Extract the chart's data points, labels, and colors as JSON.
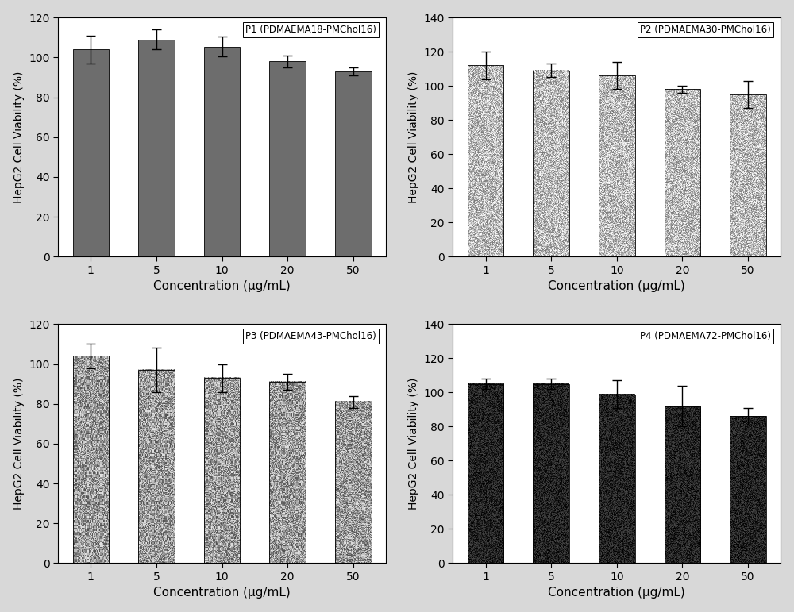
{
  "panels": [
    {
      "title": "P1 (PDMAEMA18-PMChol16)",
      "values": [
        104,
        109,
        105.5,
        98,
        93
      ],
      "errors": [
        7,
        5,
        5,
        3,
        2
      ],
      "ylim": [
        0,
        120
      ],
      "yticks": [
        0,
        20,
        40,
        60,
        80,
        100,
        120
      ],
      "bar_style": "solid",
      "bar_color": "#6d6d6d",
      "noise_low": 0,
      "noise_high": 0,
      "noise_rows": 0,
      "noise_cols": 0
    },
    {
      "title": "P2 (PDMAEMA30-PMChol16)",
      "values": [
        112,
        109,
        106,
        98,
        95
      ],
      "errors": [
        8,
        4,
        8,
        2,
        8
      ],
      "ylim": [
        0,
        140
      ],
      "yticks": [
        0,
        20,
        40,
        60,
        80,
        100,
        120,
        140
      ],
      "bar_style": "noise_light",
      "bar_color": "#aaaaaa",
      "noise_low": 120,
      "noise_high": 255,
      "noise_rows": 300,
      "noise_cols": 60
    },
    {
      "title": "P3 (PDMAEMA43-PMChol16)",
      "values": [
        104,
        97,
        93,
        91,
        81
      ],
      "errors": [
        6,
        11,
        7,
        4,
        3
      ],
      "ylim": [
        0,
        120
      ],
      "yticks": [
        0,
        20,
        40,
        60,
        80,
        100,
        120
      ],
      "bar_style": "noise_coarse",
      "bar_color": "#888888",
      "noise_low": 80,
      "noise_high": 230,
      "noise_rows": 200,
      "noise_cols": 40
    },
    {
      "title": "P4 (PDMAEMA72-PMChol16)",
      "values": [
        105,
        105,
        99,
        92,
        86
      ],
      "errors": [
        3,
        3,
        8,
        12,
        5
      ],
      "ylim": [
        0,
        140
      ],
      "yticks": [
        0,
        20,
        40,
        60,
        80,
        100,
        120,
        140
      ],
      "bar_style": "noise_dark",
      "bar_color": "#1a1a1a",
      "noise_low": 0,
      "noise_high": 70,
      "noise_rows": 300,
      "noise_cols": 60
    }
  ],
  "x_labels": [
    "1",
    "5",
    "10",
    "20",
    "50"
  ],
  "xlabel": "Concentration (μg/mL)",
  "ylabel": "HepG2 Cell Viability (%)",
  "fig_bgcolor": "#d8d8d8",
  "ax_bgcolor": "#ffffff",
  "bar_width": 0.55
}
